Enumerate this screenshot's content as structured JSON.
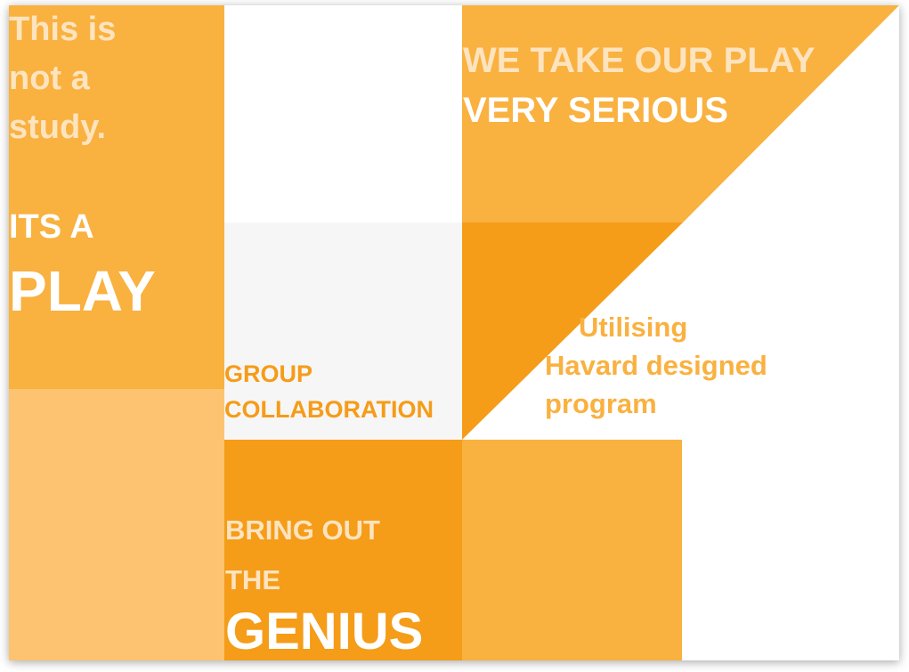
{
  "colors": {
    "orange_light": "#fdc370",
    "orange_mid": "#f9b140",
    "orange_deep": "#f59c18",
    "cream": "#fde4bf",
    "panel_gray": "#f6f6f6"
  },
  "left_panel": {
    "tagline_line1": "This is",
    "tagline_line2": "not a",
    "tagline_line3": "study.",
    "its_a": "ITS A",
    "play": "PLAY"
  },
  "top_right": {
    "line1": "WE TAKE OUR PLAY",
    "line2": "VERY SERIOUS"
  },
  "middle": {
    "group_line1": "GROUP",
    "group_line2": "COLLABORATION"
  },
  "program": {
    "line1": "Utilising",
    "line2": "Havard designed",
    "line3": "program"
  },
  "bottom": {
    "bring_line1": "BRING OUT",
    "bring_line2": "THE",
    "genius": "GENIUS"
  }
}
